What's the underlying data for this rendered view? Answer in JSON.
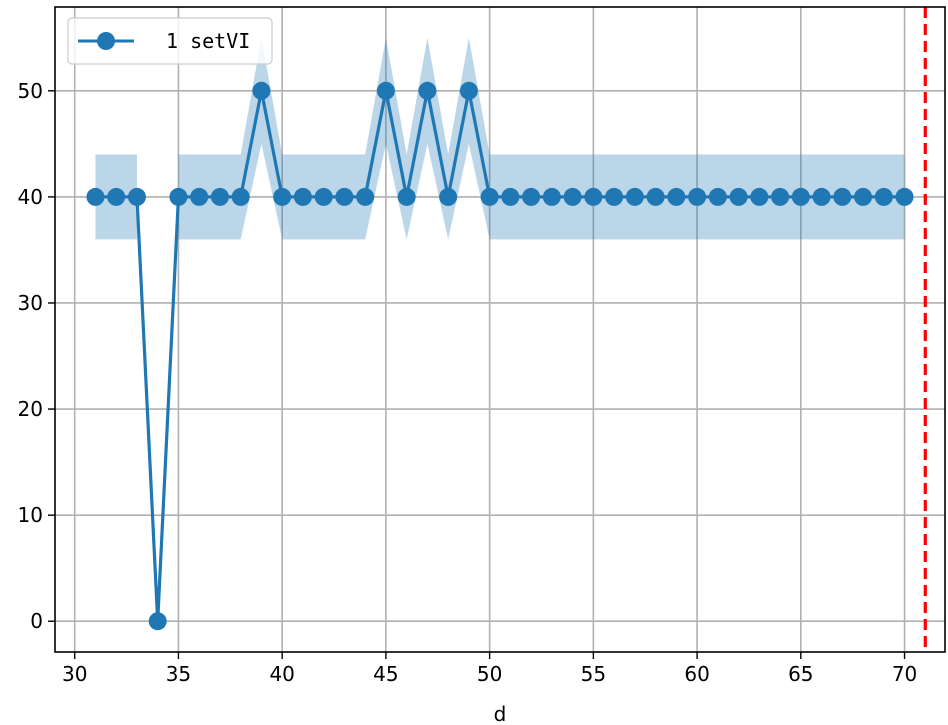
{
  "chart_data": {
    "type": "line",
    "title": "",
    "xlabel": "d",
    "ylabel": "",
    "xlim": [
      29.05,
      71.95
    ],
    "ylim": [
      -2.9,
      57.9
    ],
    "x_ticks": [
      30,
      35,
      40,
      45,
      50,
      55,
      60,
      65,
      70
    ],
    "y_ticks": [
      0,
      10,
      20,
      30,
      40,
      50
    ],
    "x_tick_labels": [
      "30",
      "35",
      "40",
      "45",
      "50",
      "55",
      "60",
      "65",
      "70"
    ],
    "y_tick_labels": [
      "0",
      "10",
      "20",
      "30",
      "40",
      "50"
    ],
    "grid": true,
    "legend_position": "top-left",
    "series": [
      {
        "name": "1 setVI",
        "color": "#1f77b4",
        "band_color": "#1f77b4",
        "x": [
          31,
          32,
          33,
          34,
          35,
          36,
          37,
          38,
          39,
          40,
          41,
          42,
          43,
          44,
          45,
          46,
          47,
          48,
          49,
          50,
          51,
          52,
          53,
          54,
          55,
          56,
          57,
          58,
          59,
          60,
          61,
          62,
          63,
          64,
          65,
          66,
          67,
          68,
          69,
          70
        ],
        "values": [
          40,
          40,
          40,
          0,
          40,
          40,
          40,
          40,
          50,
          40,
          40,
          40,
          40,
          40,
          50,
          40,
          50,
          40,
          50,
          40,
          40,
          40,
          40,
          40,
          40,
          40,
          40,
          40,
          40,
          40,
          40,
          40,
          40,
          40,
          40,
          40,
          40,
          40,
          40,
          40
        ],
        "band_lower": [
          36,
          36,
          36,
          null,
          36,
          36,
          36,
          36,
          45,
          36,
          36,
          36,
          36,
          36,
          45,
          36,
          45,
          36,
          45,
          36,
          36,
          36,
          36,
          36,
          36,
          36,
          36,
          36,
          36,
          36,
          36,
          36,
          36,
          36,
          36,
          36,
          36,
          36,
          36,
          36
        ],
        "band_upper": [
          44,
          44,
          44,
          null,
          44,
          44,
          44,
          44,
          55,
          44,
          44,
          44,
          44,
          44,
          55,
          44,
          55,
          44,
          55,
          44,
          44,
          44,
          44,
          44,
          44,
          44,
          44,
          44,
          44,
          44,
          44,
          44,
          44,
          44,
          44,
          44,
          44,
          44,
          44,
          44
        ]
      }
    ],
    "vline": {
      "x": 71,
      "color": "#ff0000",
      "style": "dashed"
    }
  }
}
